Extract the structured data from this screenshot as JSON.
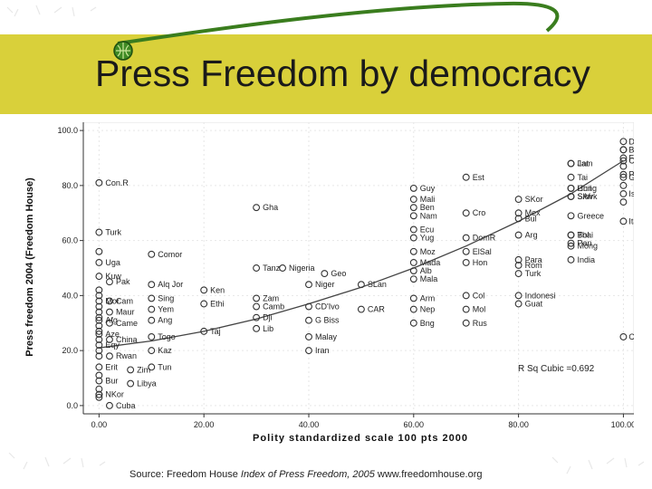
{
  "slide": {
    "title": "Press Freedom by democracy",
    "source_prefix": "Source: Freedom House ",
    "source_italic": "Index of Press Freedom, 2005",
    "source_suffix": " www.freedomhouse.org"
  },
  "colors": {
    "band": "#d9d03a",
    "swoosh": "#3a7d1e",
    "points": "#333333",
    "curve": "#444444"
  },
  "icons": {
    "bullet": "green-globe-bullet-icon"
  },
  "chart_data": {
    "type": "scatter",
    "title": "",
    "xlabel": "Polity standardized scale 100 pts 2000",
    "ylabel": "Press freedom 2004 (Freedom House)",
    "xlim": [
      -3,
      102
    ],
    "ylim": [
      -3,
      103
    ],
    "x_ticks": [
      0,
      20,
      40,
      60,
      80,
      100
    ],
    "x_tick_labels": [
      "0.00",
      "20.00",
      "40.00",
      "60.00",
      "80.00",
      "100.00"
    ],
    "y_ticks": [
      0,
      20,
      40,
      60,
      80,
      100
    ],
    "y_tick_labels": [
      "0.0",
      "20.0",
      "40.0",
      "60.0",
      "80.0",
      "100.0"
    ],
    "fit_label": "R Sq Cubic =0.692",
    "fit_curve": [
      [
        0,
        21
      ],
      [
        10,
        23.5
      ],
      [
        20,
        27
      ],
      [
        30,
        31.5
      ],
      [
        40,
        37
      ],
      [
        50,
        43
      ],
      [
        60,
        50
      ],
      [
        70,
        58
      ],
      [
        80,
        67
      ],
      [
        90,
        77
      ],
      [
        100,
        89
      ]
    ],
    "points": [
      {
        "label": "Con.R",
        "x": 0,
        "y": 81
      },
      {
        "label": "Turk",
        "x": 0,
        "y": 63
      },
      {
        "label": "",
        "x": 0,
        "y": 56
      },
      {
        "label": "Uga",
        "x": 0,
        "y": 52
      },
      {
        "label": "Kuw",
        "x": 0,
        "y": 47
      },
      {
        "label": "",
        "x": 0,
        "y": 42
      },
      {
        "label": "",
        "x": 0,
        "y": 40
      },
      {
        "label": "Mor",
        "x": 0,
        "y": 38
      },
      {
        "label": "",
        "x": 0,
        "y": 36
      },
      {
        "label": "",
        "x": 0,
        "y": 34
      },
      {
        "label": "",
        "x": 0,
        "y": 32
      },
      {
        "label": "Afg",
        "x": 0,
        "y": 31
      },
      {
        "label": "",
        "x": 0,
        "y": 29
      },
      {
        "label": "",
        "x": 0,
        "y": 27
      },
      {
        "label": "Aze",
        "x": 0,
        "y": 26
      },
      {
        "label": "",
        "x": 0,
        "y": 24
      },
      {
        "label": "Eqy",
        "x": 0,
        "y": 22
      },
      {
        "label": "",
        "x": 0,
        "y": 20
      },
      {
        "label": "",
        "x": 0,
        "y": 18
      },
      {
        "label": "Erit",
        "x": 0,
        "y": 14
      },
      {
        "label": "",
        "x": 0,
        "y": 11
      },
      {
        "label": "Bur",
        "x": 0,
        "y": 9
      },
      {
        "label": "",
        "x": 0,
        "y": 6
      },
      {
        "label": "",
        "x": 0,
        "y": 4
      },
      {
        "label": "",
        "x": 0,
        "y": 3
      },
      {
        "label": "Pak",
        "x": 2,
        "y": 45
      },
      {
        "label": "Cam",
        "x": 2,
        "y": 38
      },
      {
        "label": "Maur",
        "x": 2,
        "y": 34
      },
      {
        "label": "Came",
        "x": 2,
        "y": 30
      },
      {
        "label": "China",
        "x": 2,
        "y": 24
      },
      {
        "label": "Rwan",
        "x": 2,
        "y": 18
      },
      {
        "label": "Zim",
        "x": 6,
        "y": 13
      },
      {
        "label": "Libya",
        "x": 6,
        "y": 8
      },
      {
        "label": "NKor",
        "x": 0,
        "y": 4
      },
      {
        "label": "Cuba",
        "x": 2,
        "y": 0
      },
      {
        "label": "Comor",
        "x": 10,
        "y": 55
      },
      {
        "label": "Alq Jor",
        "x": 10,
        "y": 44
      },
      {
        "label": "Sing",
        "x": 10,
        "y": 39
      },
      {
        "label": "Yem",
        "x": 10,
        "y": 35
      },
      {
        "label": "Ang",
        "x": 10,
        "y": 31
      },
      {
        "label": "Togo",
        "x": 10,
        "y": 25
      },
      {
        "label": "Kaz",
        "x": 10,
        "y": 20
      },
      {
        "label": "Tun",
        "x": 10,
        "y": 14
      },
      {
        "label": "Ken",
        "x": 20,
        "y": 42
      },
      {
        "label": "Ethi",
        "x": 20,
        "y": 37
      },
      {
        "label": "Taj",
        "x": 20,
        "y": 27
      },
      {
        "label": "Tanz",
        "x": 30,
        "y": 50
      },
      {
        "label": "Zam",
        "x": 30,
        "y": 39
      },
      {
        "label": "Camb",
        "x": 30,
        "y": 36
      },
      {
        "label": "Dji",
        "x": 30,
        "y": 32
      },
      {
        "label": "Lib",
        "x": 30,
        "y": 28
      },
      {
        "label": "Gha",
        "x": 30,
        "y": 72
      },
      {
        "label": "Nigeria",
        "x": 35,
        "y": 50
      },
      {
        "label": "Geo",
        "x": 43,
        "y": 48
      },
      {
        "label": "Niger",
        "x": 40,
        "y": 44
      },
      {
        "label": "CD'Ivo",
        "x": 40,
        "y": 36
      },
      {
        "label": "G Biss",
        "x": 40,
        "y": 31
      },
      {
        "label": "Malay",
        "x": 40,
        "y": 25
      },
      {
        "label": "Iran",
        "x": 40,
        "y": 20
      },
      {
        "label": "SLan",
        "x": 50,
        "y": 44
      },
      {
        "label": "CAR",
        "x": 50,
        "y": 35
      },
      {
        "label": "Est",
        "x": 70,
        "y": 83
      },
      {
        "label": "Guy",
        "x": 60,
        "y": 79
      },
      {
        "label": "Mali",
        "x": 60,
        "y": 75
      },
      {
        "label": "Ben",
        "x": 60,
        "y": 72
      },
      {
        "label": "Nam",
        "x": 60,
        "y": 69
      },
      {
        "label": "Ecu",
        "x": 60,
        "y": 64
      },
      {
        "label": "Yug",
        "x": 60,
        "y": 61
      },
      {
        "label": "Moz",
        "x": 60,
        "y": 56
      },
      {
        "label": "Mada",
        "x": 60,
        "y": 52
      },
      {
        "label": "Alb",
        "x": 60,
        "y": 49
      },
      {
        "label": "Mala",
        "x": 60,
        "y": 46
      },
      {
        "label": "Arm",
        "x": 60,
        "y": 39
      },
      {
        "label": "Nep",
        "x": 60,
        "y": 35
      },
      {
        "label": "Bng",
        "x": 60,
        "y": 30
      },
      {
        "label": "Cro",
        "x": 70,
        "y": 70
      },
      {
        "label": "DomR",
        "x": 70,
        "y": 61
      },
      {
        "label": "ElSal",
        "x": 70,
        "y": 56
      },
      {
        "label": "Hon",
        "x": 70,
        "y": 52
      },
      {
        "label": "Col",
        "x": 70,
        "y": 40
      },
      {
        "label": "Mol",
        "x": 70,
        "y": 35
      },
      {
        "label": "Rus",
        "x": 70,
        "y": 30
      },
      {
        "label": "SKor",
        "x": 80,
        "y": 75
      },
      {
        "label": "Mex",
        "x": 80,
        "y": 70
      },
      {
        "label": "Bul",
        "x": 80,
        "y": 68
      },
      {
        "label": "Arg",
        "x": 80,
        "y": 62
      },
      {
        "label": "Para",
        "x": 80,
        "y": 53
      },
      {
        "label": "Turk",
        "x": 80,
        "y": 48
      },
      {
        "label": "Indonesi",
        "x": 80,
        "y": 40
      },
      {
        "label": "Guat",
        "x": 80,
        "y": 37
      },
      {
        "label": "Rom",
        "x": 80,
        "y": 51
      },
      {
        "label": "Lat",
        "x": 90,
        "y": 88
      },
      {
        "label": "Chil",
        "x": 90,
        "y": 79
      },
      {
        "label": "Slovk",
        "x": 90,
        "y": 76
      },
      {
        "label": "Bol",
        "x": 90,
        "y": 62
      },
      {
        "label": "Pan",
        "x": 90,
        "y": 59
      },
      {
        "label": "India",
        "x": 90,
        "y": 53
      },
      {
        "label": "Jam",
        "x": 90,
        "y": 88
      },
      {
        "label": "Tai",
        "x": 90,
        "y": 83
      },
      {
        "label": "Hung",
        "x": 90,
        "y": 79
      },
      {
        "label": "SAfr",
        "x": 90,
        "y": 76
      },
      {
        "label": "Greece",
        "x": 90,
        "y": 69
      },
      {
        "label": "Thai",
        "x": 90,
        "y": 62
      },
      {
        "label": "Mong",
        "x": 90,
        "y": 58
      },
      {
        "label": "Belg",
        "x": 100,
        "y": 93
      },
      {
        "label": "Can",
        "x": 100,
        "y": 89
      },
      {
        "label": "Pol",
        "x": 100,
        "y": 84
      },
      {
        "label": "Den",
        "x": 100,
        "y": 96
      },
      {
        "label": "Fin",
        "x": 100,
        "y": 90
      },
      {
        "label": "Ger",
        "x": 100,
        "y": 83
      },
      {
        "label": "Isr",
        "x": 100,
        "y": 77
      },
      {
        "label": "Ita",
        "x": 100,
        "y": 67
      },
      {
        "label": "",
        "x": 100,
        "y": 93
      },
      {
        "label": "",
        "x": 100,
        "y": 87
      },
      {
        "label": "",
        "x": 100,
        "y": 80
      },
      {
        "label": "",
        "x": 100,
        "y": 74
      },
      {
        "label": "CRica",
        "x": 100,
        "y": 25
      }
    ]
  }
}
